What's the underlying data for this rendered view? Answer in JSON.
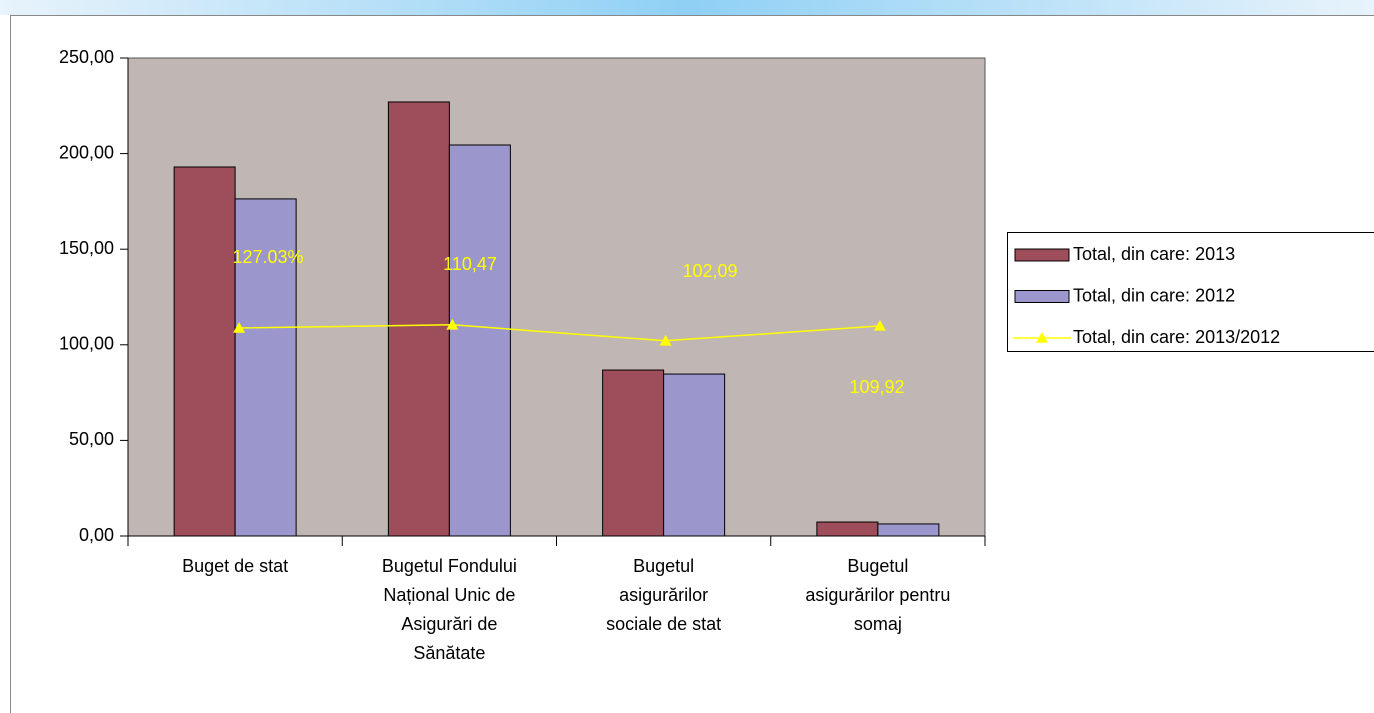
{
  "chart_data": {
    "type": "bar",
    "categories": [
      "Buget de stat",
      "Bugetul Fondului\nNațional Unic de\nAsigurări de\nSănătate",
      "Bugetul\nasigurărilor\nsociale de stat",
      "Bugetul\nasigurărilor pentru\nsomaj"
    ],
    "series": [
      {
        "name": "Total, din care: 2013",
        "color": "#9e4d5a",
        "type": "bar",
        "values": [
          193,
          227,
          86.8,
          7.3
        ]
      },
      {
        "name": "Total, din care: 2012",
        "color": "#9b96cc",
        "type": "bar",
        "values": [
          176.3,
          204.5,
          84.7,
          6.3
        ]
      },
      {
        "name": "Total, din care: 2013/2012",
        "color": "#ffff00",
        "type": "line",
        "values": [
          108.8,
          110.47,
          102.09,
          109.92
        ],
        "value_labels": [
          null,
          "110,47",
          "102,09",
          "109,92"
        ]
      }
    ],
    "annotations": [
      "127.03%"
    ],
    "ylim": [
      0,
      250
    ],
    "yticks": [
      {
        "value": 0,
        "label": "0,00"
      },
      {
        "value": 50,
        "label": "50,00"
      },
      {
        "value": 100,
        "label": "100,00"
      },
      {
        "value": 150,
        "label": "150,00"
      },
      {
        "value": 200,
        "label": "200,00"
      },
      {
        "value": 250,
        "label": "250,00"
      }
    ],
    "legend": "right",
    "plot_background": "#c0b6b3"
  }
}
